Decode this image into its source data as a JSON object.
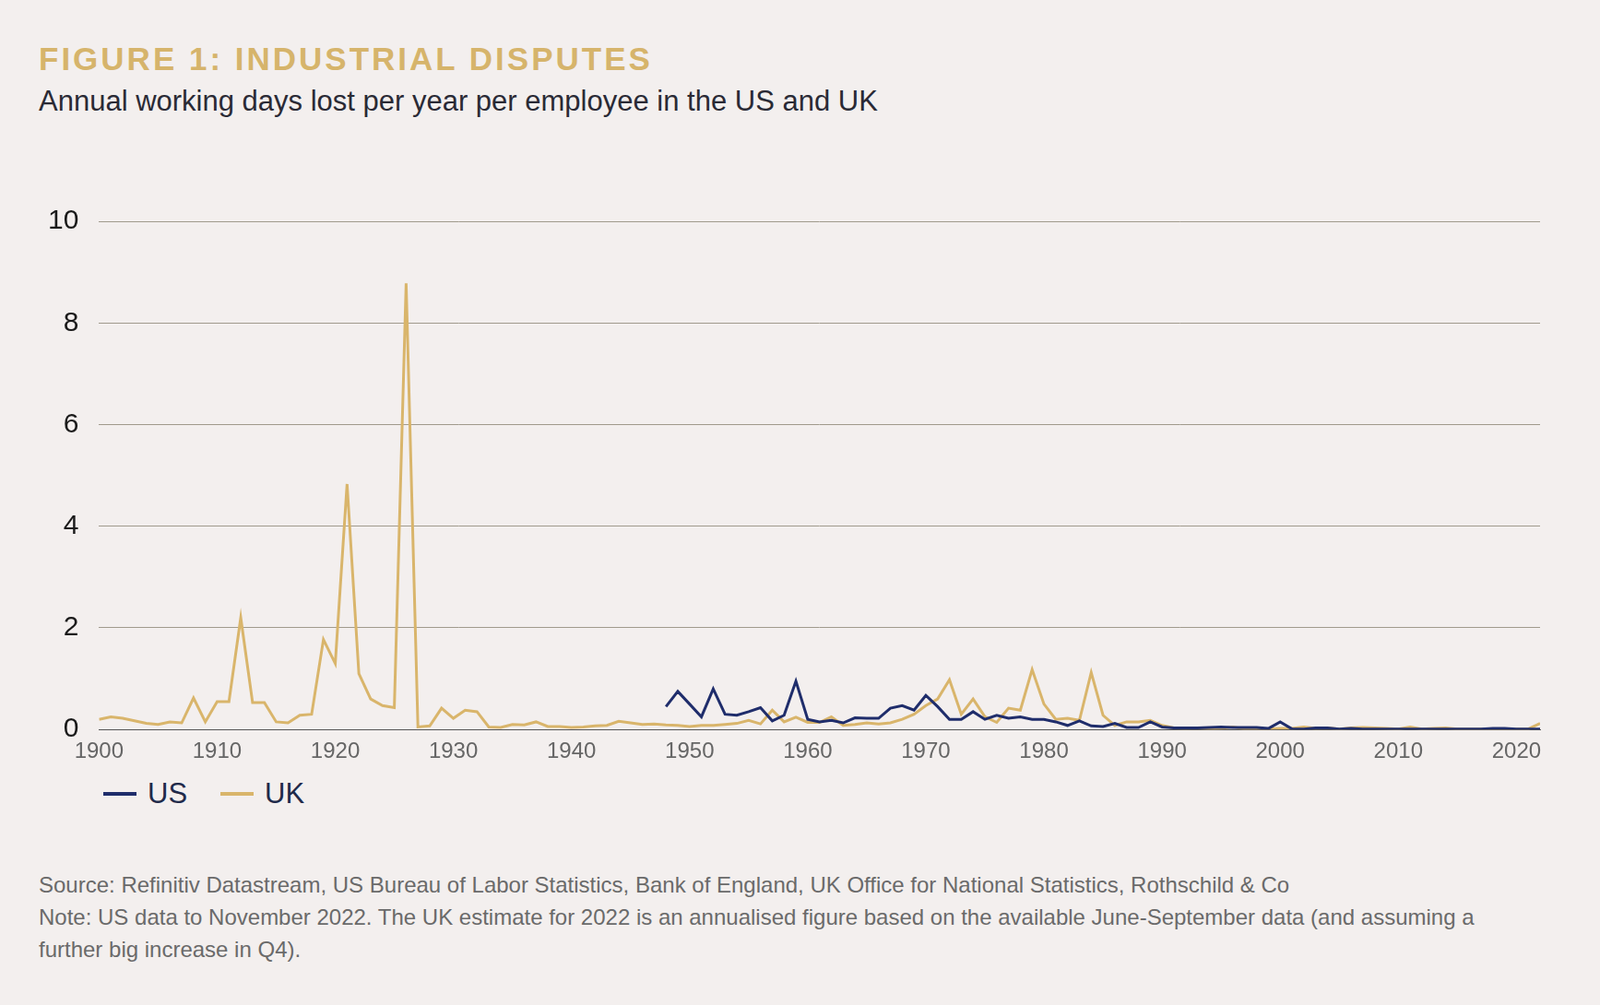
{
  "chart_data": {
    "type": "line",
    "title": "FIGURE 1: INDUSTRIAL DISPUTES",
    "subtitle": "Annual working days lost per year per employee in the US and UK",
    "notes": [
      "Source: Refinitiv Datastream, US Bureau of Labor Statistics, Bank of England, UK Office for National Statistics, Rothschild & Co",
      "Note: US data to November 2022. The UK estimate for 2022 is an annualised figure based on the available June-September data (and assuming a further big increase in Q4)."
    ],
    "x": [
      1900,
      1901,
      1902,
      1903,
      1904,
      1905,
      1906,
      1907,
      1908,
      1909,
      1910,
      1911,
      1912,
      1913,
      1914,
      1915,
      1916,
      1917,
      1918,
      1919,
      1920,
      1921,
      1922,
      1923,
      1924,
      1925,
      1926,
      1927,
      1928,
      1929,
      1930,
      1931,
      1932,
      1933,
      1934,
      1935,
      1936,
      1937,
      1938,
      1939,
      1940,
      1941,
      1942,
      1943,
      1944,
      1945,
      1946,
      1947,
      1948,
      1949,
      1950,
      1951,
      1952,
      1953,
      1954,
      1955,
      1956,
      1957,
      1958,
      1959,
      1960,
      1961,
      1962,
      1963,
      1964,
      1965,
      1966,
      1967,
      1968,
      1969,
      1970,
      1971,
      1972,
      1973,
      1974,
      1975,
      1976,
      1977,
      1978,
      1979,
      1980,
      1981,
      1982,
      1983,
      1984,
      1985,
      1986,
      1987,
      1988,
      1989,
      1990,
      1991,
      1992,
      1993,
      1994,
      1995,
      1996,
      1997,
      1998,
      1999,
      2000,
      2001,
      2002,
      2003,
      2004,
      2005,
      2006,
      2007,
      2008,
      2009,
      2010,
      2011,
      2012,
      2013,
      2014,
      2015,
      2016,
      2017,
      2018,
      2019,
      2020,
      2021,
      2022
    ],
    "series": [
      {
        "name": "US",
        "color": "#1f2d6b",
        "values": [
          null,
          null,
          null,
          null,
          null,
          null,
          null,
          null,
          null,
          null,
          null,
          null,
          null,
          null,
          null,
          null,
          null,
          null,
          null,
          null,
          null,
          null,
          null,
          null,
          null,
          null,
          null,
          null,
          null,
          null,
          null,
          null,
          null,
          null,
          null,
          null,
          null,
          null,
          null,
          null,
          null,
          null,
          null,
          null,
          null,
          null,
          null,
          null,
          0.45,
          0.75,
          0.5,
          0.25,
          0.8,
          0.3,
          0.28,
          0.35,
          0.43,
          0.17,
          0.28,
          0.95,
          0.2,
          0.15,
          0.18,
          0.13,
          0.23,
          0.22,
          0.22,
          0.42,
          0.47,
          0.38,
          0.67,
          0.45,
          0.2,
          0.2,
          0.35,
          0.2,
          0.28,
          0.22,
          0.25,
          0.2,
          0.2,
          0.15,
          0.08,
          0.17,
          0.07,
          0.06,
          0.12,
          0.04,
          0.04,
          0.15,
          0.05,
          0.03,
          0.03,
          0.03,
          0.04,
          0.05,
          0.04,
          0.04,
          0.04,
          0.02,
          0.15,
          0.01,
          0.01,
          0.03,
          0.03,
          0.01,
          0.02,
          0.01,
          0.01,
          0.01,
          0.01,
          0.01,
          0.01,
          0.01,
          0.01,
          0.01,
          0.01,
          0.01,
          0.02,
          0.02,
          0.01,
          0.01,
          0.01
        ]
      },
      {
        "name": "UK",
        "color": "#d9b56b",
        "values": [
          0.2,
          0.25,
          0.22,
          0.17,
          0.12,
          0.1,
          0.15,
          0.13,
          0.62,
          0.15,
          0.55,
          0.55,
          2.2,
          0.53,
          0.53,
          0.15,
          0.13,
          0.28,
          0.3,
          1.77,
          1.3,
          4.83,
          1.1,
          0.6,
          0.47,
          0.43,
          8.78,
          0.05,
          0.07,
          0.42,
          0.22,
          0.38,
          0.35,
          0.05,
          0.04,
          0.1,
          0.09,
          0.15,
          0.06,
          0.06,
          0.04,
          0.05,
          0.07,
          0.08,
          0.16,
          0.13,
          0.1,
          0.11,
          0.09,
          0.08,
          0.06,
          0.08,
          0.08,
          0.1,
          0.12,
          0.18,
          0.11,
          0.38,
          0.15,
          0.24,
          0.14,
          0.14,
          0.25,
          0.08,
          0.1,
          0.13,
          0.11,
          0.13,
          0.2,
          0.3,
          0.47,
          0.6,
          0.98,
          0.3,
          0.6,
          0.25,
          0.14,
          0.42,
          0.38,
          1.18,
          0.5,
          0.2,
          0.22,
          0.18,
          1.12,
          0.28,
          0.08,
          0.15,
          0.15,
          0.18,
          0.08,
          0.03,
          0.02,
          0.03,
          0.01,
          0.02,
          0.05,
          0.01,
          0.01,
          0.01,
          0.02,
          0.02,
          0.05,
          0.02,
          0.03,
          0.01,
          0.03,
          0.04,
          0.03,
          0.02,
          0.01,
          0.05,
          0.01,
          0.02,
          0.03,
          0.01,
          0.01,
          0.01,
          0.01,
          0.01,
          0.01,
          0.01,
          0.12
        ]
      }
    ],
    "xlim": [
      1900,
      2022
    ],
    "xticks": [
      1900,
      1910,
      1920,
      1930,
      1940,
      1950,
      1960,
      1970,
      1980,
      1990,
      2000,
      2010,
      2020
    ],
    "ylim": [
      0,
      10
    ],
    "yticks": [
      0,
      2,
      4,
      6,
      8,
      10
    ],
    "grid": true,
    "legend": "bottom-left"
  }
}
